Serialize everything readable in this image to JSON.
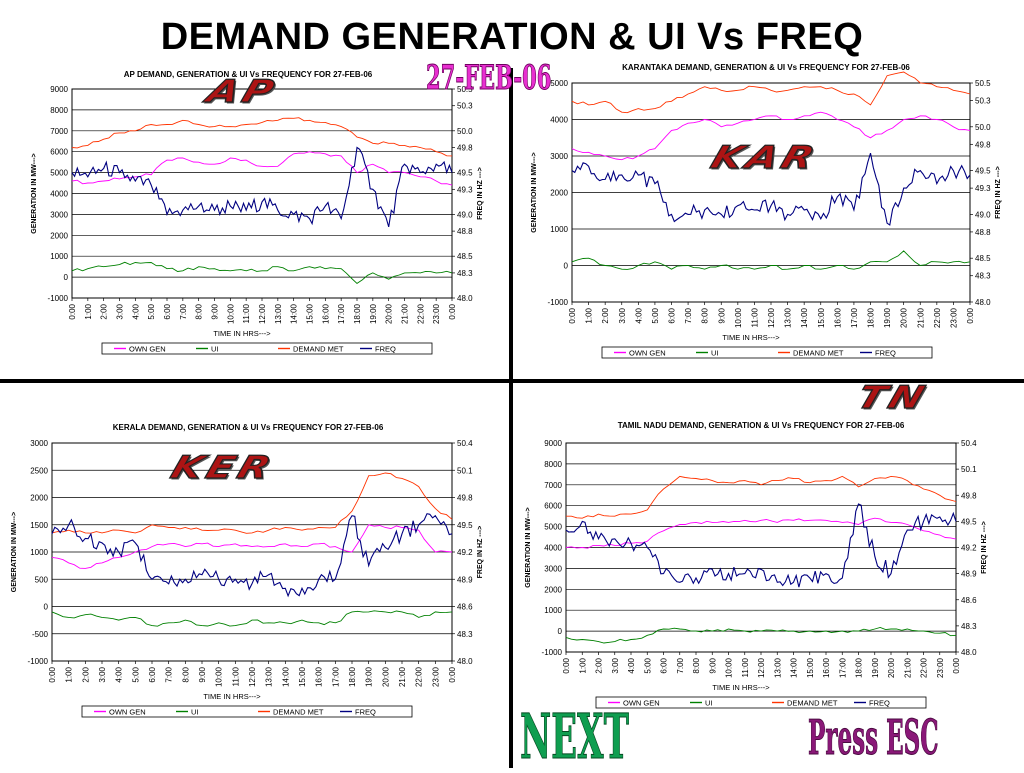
{
  "title": "DEMAND GENERATION & UI Vs FREQ",
  "date_stamp": "27-FEB-06",
  "nav": {
    "next_label": "NEXT",
    "esc_label": "Press ESC"
  },
  "tags": {
    "ap": "AP",
    "kar": "KAR",
    "ker": "KER",
    "tn": "TN"
  },
  "colors": {
    "own_gen": "#ff00ff",
    "ui": "#008000",
    "demand_met": "#ff3300",
    "freq": "#000080"
  },
  "chart_data": [
    {
      "id": "ap",
      "type": "line",
      "title": "AP  DEMAND, GENERATION & UI Vs FREQUENCY FOR 27-FEB-06",
      "xlabel": "TIME IN HRS--->",
      "ylabel": "GENERATION IN MW--->",
      "y2label": "FREQ IN HZ --->",
      "x": [
        "0:00",
        "1:00",
        "2:00",
        "3:00",
        "4:00",
        "5:00",
        "6:00",
        "7:00",
        "8:00",
        "9:00",
        "10:00",
        "11:00",
        "12:00",
        "13:00",
        "14:00",
        "15:00",
        "16:00",
        "17:00",
        "18:00",
        "19:00",
        "20:00",
        "21:00",
        "22:00",
        "23:00",
        "0:00"
      ],
      "ylim": [
        -1000,
        9000
      ],
      "yticks": [
        -1000,
        0,
        1000,
        2000,
        3000,
        4000,
        5000,
        6000,
        7000,
        8000,
        9000
      ],
      "y2lim": [
        48.0,
        50.5
      ],
      "y2ticks": [
        "48.0",
        "48.3",
        "48.5",
        "48.8",
        "49.0",
        "49.3",
        "49.5",
        "49.8",
        "50.0",
        "50.3",
        "50.5"
      ],
      "legend": [
        "OWN GEN",
        "UI",
        "DEMAND MET",
        "FREQ"
      ],
      "series": [
        {
          "name": "OWN GEN",
          "axis": "left",
          "values": [
            4600,
            4500,
            4600,
            4700,
            4800,
            4900,
            5600,
            5700,
            5500,
            5400,
            5700,
            5600,
            5300,
            5300,
            5900,
            6000,
            5900,
            5800,
            5000,
            5400,
            5000,
            5000,
            4800,
            4600,
            4400
          ]
        },
        {
          "name": "UI",
          "axis": "left",
          "values": [
            300,
            400,
            500,
            600,
            700,
            700,
            400,
            300,
            500,
            400,
            300,
            300,
            300,
            500,
            300,
            500,
            400,
            400,
            -300,
            200,
            -100,
            200,
            200,
            200,
            200
          ]
        },
        {
          "name": "DEMAND MET",
          "axis": "left",
          "values": [
            6200,
            6300,
            6600,
            6900,
            7000,
            7300,
            7300,
            7500,
            7300,
            7200,
            7200,
            7300,
            7400,
            7500,
            7600,
            7500,
            7400,
            7200,
            6700,
            6400,
            6400,
            6300,
            6200,
            6000,
            5800
          ]
        },
        {
          "name": "FREQ",
          "axis": "right",
          "values": [
            49.5,
            49.45,
            49.55,
            49.5,
            49.4,
            49.35,
            49.0,
            49.05,
            49.1,
            49.05,
            49.1,
            49.05,
            49.15,
            49.05,
            49.0,
            48.95,
            49.1,
            48.95,
            49.8,
            49.3,
            48.85,
            49.6,
            49.5,
            49.6,
            49.5
          ]
        }
      ]
    },
    {
      "id": "kar",
      "type": "line",
      "title": "KARANTAKA  DEMAND, GENERATION & UI Vs FREQUENCY FOR 27-FEB-06",
      "xlabel": "TIME IN HRS--->",
      "ylabel": "GENERATION IN MW--->",
      "y2label": "FREQ IN HZ --->",
      "x": [
        "0:00",
        "1:00",
        "2:00",
        "3:00",
        "4:00",
        "5:00",
        "6:00",
        "7:00",
        "8:00",
        "9:00",
        "10:00",
        "11:00",
        "12:00",
        "13:00",
        "14:00",
        "15:00",
        "16:00",
        "17:00",
        "18:00",
        "19:00",
        "20:00",
        "21:00",
        "22:00",
        "23:00",
        "0:00"
      ],
      "ylim": [
        -1000,
        5000
      ],
      "yticks": [
        -1000,
        0,
        1000,
        2000,
        3000,
        4000,
        5000
      ],
      "y2lim": [
        48.0,
        50.5
      ],
      "y2ticks": [
        "48.0",
        "48.3",
        "48.5",
        "48.8",
        "49.0",
        "49.3",
        "49.5",
        "49.8",
        "50.0",
        "50.3",
        "50.5"
      ],
      "legend": [
        "OWN GEN",
        "UI",
        "DEMAND MET",
        "FREQ"
      ],
      "series": [
        {
          "name": "OWN GEN",
          "axis": "left",
          "values": [
            3200,
            3100,
            3000,
            2900,
            3000,
            3200,
            3700,
            3900,
            4000,
            3800,
            3900,
            4000,
            4100,
            4000,
            4100,
            4200,
            4000,
            3800,
            3500,
            3700,
            4000,
            4100,
            4000,
            3800,
            3700
          ]
        },
        {
          "name": "UI",
          "axis": "left",
          "values": [
            100,
            200,
            0,
            -100,
            0,
            100,
            -100,
            0,
            -100,
            0,
            -100,
            -100,
            0,
            -100,
            0,
            -100,
            0,
            -100,
            100,
            100,
            400,
            0,
            100,
            100,
            100
          ]
        },
        {
          "name": "DEMAND MET",
          "axis": "left",
          "values": [
            4500,
            4400,
            4500,
            4200,
            4300,
            4300,
            4500,
            4700,
            4900,
            4800,
            4800,
            4900,
            4800,
            4800,
            4900,
            4900,
            4800,
            4700,
            4400,
            5200,
            5300,
            5000,
            4900,
            4800,
            4700
          ]
        },
        {
          "name": "FREQ",
          "axis": "right",
          "values": [
            49.5,
            49.55,
            49.4,
            49.45,
            49.45,
            49.35,
            49.0,
            49.0,
            49.05,
            49.0,
            49.1,
            49.05,
            49.1,
            49.0,
            49.05,
            48.95,
            49.2,
            49.05,
            49.7,
            48.9,
            49.3,
            49.5,
            49.35,
            49.5,
            49.45
          ]
        }
      ]
    },
    {
      "id": "ker",
      "type": "line",
      "title": "KERALA  DEMAND, GENERATION & UI Vs FREQUENCY FOR 27-FEB-06",
      "xlabel": "TIME IN HRS--->",
      "ylabel": "GENERATION IN MW--->",
      "y2label": "FREQ IN HZ --->",
      "x": [
        "0:00",
        "1:00",
        "2:00",
        "3:00",
        "4:00",
        "5:00",
        "6:00",
        "7:00",
        "8:00",
        "9:00",
        "10:00",
        "11:00",
        "12:00",
        "13:00",
        "14:00",
        "15:00",
        "16:00",
        "17:00",
        "18:00",
        "19:00",
        "20:00",
        "21:00",
        "22:00",
        "23:00",
        "0:00"
      ],
      "ylim": [
        -1000,
        3000
      ],
      "yticks": [
        -1000,
        -500,
        0,
        500,
        1000,
        1500,
        2000,
        2500,
        3000
      ],
      "y2lim": [
        48.0,
        50.4
      ],
      "y2ticks": [
        "48.0",
        "48.3",
        "48.6",
        "48.9",
        "49.2",
        "49.5",
        "49.8",
        "50.1",
        "50.4"
      ],
      "legend": [
        "OWN GEN",
        "UI",
        "DEMAND MET",
        "FREQ"
      ],
      "series": [
        {
          "name": "OWN GEN",
          "axis": "left",
          "values": [
            900,
            800,
            700,
            800,
            900,
            1000,
            1100,
            1150,
            1100,
            1150,
            1100,
            1150,
            1100,
            1100,
            1150,
            1100,
            1150,
            1100,
            1000,
            1500,
            1450,
            1450,
            1400,
            1000,
            1000
          ]
        },
        {
          "name": "UI",
          "axis": "left",
          "values": [
            -100,
            -200,
            -150,
            -200,
            -250,
            -200,
            -350,
            -300,
            -250,
            -350,
            -300,
            -350,
            -250,
            -300,
            -300,
            -250,
            -300,
            -300,
            -100,
            -100,
            -100,
            -100,
            -200,
            -100,
            -100
          ]
        },
        {
          "name": "DEMAND MET",
          "axis": "left",
          "values": [
            1350,
            1400,
            1350,
            1350,
            1400,
            1350,
            1500,
            1450,
            1450,
            1400,
            1400,
            1400,
            1350,
            1400,
            1450,
            1400,
            1450,
            1450,
            1750,
            2400,
            2450,
            2350,
            2200,
            1800,
            1600
          ]
        },
        {
          "name": "FREQ",
          "axis": "right",
          "values": [
            49.4,
            49.5,
            49.35,
            49.3,
            49.2,
            49.3,
            48.9,
            48.85,
            48.9,
            48.95,
            48.9,
            48.9,
            48.85,
            48.95,
            48.8,
            48.8,
            48.9,
            48.9,
            49.6,
            49.05,
            49.25,
            49.4,
            49.5,
            49.6,
            49.4
          ]
        }
      ]
    },
    {
      "id": "tn",
      "type": "line",
      "title": "TAMIL NADU  DEMAND, GENERATION & UI Vs FREQUENCY FOR 27-FEB-06",
      "xlabel": "TIME IN HRS--->",
      "ylabel": "GENERATION IN MW--->",
      "y2label": "FREQ IN HZ --->",
      "x": [
        "0:00",
        "1:00",
        "2:00",
        "3:00",
        "4:00",
        "5:00",
        "6:00",
        "7:00",
        "8:00",
        "9:00",
        "10:00",
        "11:00",
        "12:00",
        "13:00",
        "14:00",
        "15:00",
        "16:00",
        "17:00",
        "18:00",
        "19:00",
        "20:00",
        "21:00",
        "22:00",
        "23:00",
        "0:00"
      ],
      "ylim": [
        -1000,
        9000
      ],
      "yticks": [
        -1000,
        0,
        1000,
        2000,
        3000,
        4000,
        5000,
        6000,
        7000,
        8000,
        9000
      ],
      "y2lim": [
        48.0,
        50.4
      ],
      "y2ticks": [
        "48.0",
        "48.3",
        "48.6",
        "48.9",
        "49.2",
        "49.5",
        "49.8",
        "50.1",
        "50.4"
      ],
      "legend": [
        "OWN GEN",
        "UI",
        "DEMAND MET",
        "FREQ"
      ],
      "series": [
        {
          "name": "OWN GEN",
          "axis": "left",
          "values": [
            4000,
            4000,
            4100,
            4100,
            4200,
            4300,
            4800,
            5100,
            5200,
            5200,
            5200,
            5300,
            5300,
            5200,
            5300,
            5300,
            5300,
            5200,
            5100,
            5400,
            5200,
            5100,
            4800,
            4600,
            4400
          ]
        },
        {
          "name": "UI",
          "axis": "left",
          "values": [
            -300,
            -400,
            -500,
            -500,
            -400,
            -200,
            100,
            100,
            0,
            0,
            100,
            0,
            0,
            0,
            0,
            0,
            0,
            0,
            0,
            100,
            100,
            100,
            0,
            -100,
            -200
          ]
        },
        {
          "name": "DEMAND MET",
          "axis": "left",
          "values": [
            5500,
            5400,
            5600,
            5500,
            5600,
            5800,
            6800,
            7400,
            7300,
            7200,
            7100,
            7200,
            7000,
            7200,
            7300,
            7100,
            7200,
            7400,
            6900,
            7300,
            7400,
            7200,
            6800,
            6500,
            6200
          ]
        },
        {
          "name": "FREQ",
          "axis": "right",
          "values": [
            49.4,
            49.5,
            49.3,
            49.3,
            49.25,
            49.2,
            48.9,
            48.8,
            48.85,
            48.95,
            48.9,
            48.9,
            48.95,
            48.8,
            48.8,
            48.85,
            48.9,
            48.85,
            49.7,
            49.1,
            48.9,
            49.4,
            49.5,
            49.55,
            49.5
          ]
        }
      ]
    }
  ]
}
